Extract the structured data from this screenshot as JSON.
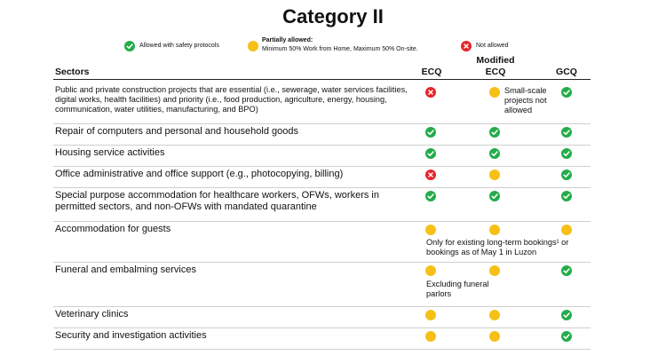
{
  "title": "Category II",
  "legend": {
    "allowed": "Allowed with safety protocols",
    "partial_title": "Partially allowed:",
    "partial_desc": "Minimum 50% Work from Home,  Maximum 50% On-site.",
    "not_allowed": "Not allowed"
  },
  "headers": {
    "sectors": "Sectors",
    "ecq": "ECQ",
    "mecq_line1": "Modified",
    "mecq_line2": "ECQ",
    "gcq": "GCQ"
  },
  "colors": {
    "allowed": "#22ad4a",
    "partial": "#f6c017",
    "not_allowed": "#e4252b"
  },
  "rows": [
    {
      "sector": "Public and private construction projects that are essential (i.e., sewerage, water services facilities, digital works, health facilities) and priority (i.e., food production, agriculture, energy, housing, communication, water utilities, manufacturing, and BPO)",
      "ecq": "not_allowed",
      "mecq": "partial",
      "gcq": "allowed",
      "note_mecq": [
        "Small-scale",
        "projects not",
        "allowed"
      ]
    },
    {
      "sector": "Repair of computers and personal and household goods",
      "ecq": "allowed",
      "mecq": "allowed",
      "gcq": "allowed"
    },
    {
      "sector": "Housing service activities",
      "ecq": "allowed",
      "mecq": "allowed",
      "gcq": "allowed"
    },
    {
      "sector": "Office administrative and office support (e.g., photocopying, billing)",
      "ecq": "not_allowed",
      "mecq": "partial",
      "gcq": "allowed"
    },
    {
      "sector": "Special purpose accommodation for healthcare workers, OFWs, workers in permitted sectors, and non-OFWs with mandated quarantine",
      "ecq": "allowed",
      "mecq": "allowed",
      "gcq": "allowed"
    },
    {
      "sector": "Accommodation for guests",
      "ecq": "partial",
      "mecq": "partial",
      "gcq": "partial",
      "note_span": [
        "Only for existing long-term bookings¹ or",
        "bookings as of May 1 in Luzon"
      ]
    },
    {
      "sector": "Funeral and embalming services",
      "ecq": "partial",
      "mecq": "partial",
      "gcq": "allowed",
      "note_ecq": [
        "Excluding funeral",
        "parlors"
      ]
    },
    {
      "sector": "Veterinary clinics",
      "ecq": "partial",
      "mecq": "partial",
      "gcq": "allowed"
    },
    {
      "sector": "Security and investigation activities",
      "ecq": "partial",
      "mecq": "partial",
      "gcq": "allowed"
    }
  ]
}
